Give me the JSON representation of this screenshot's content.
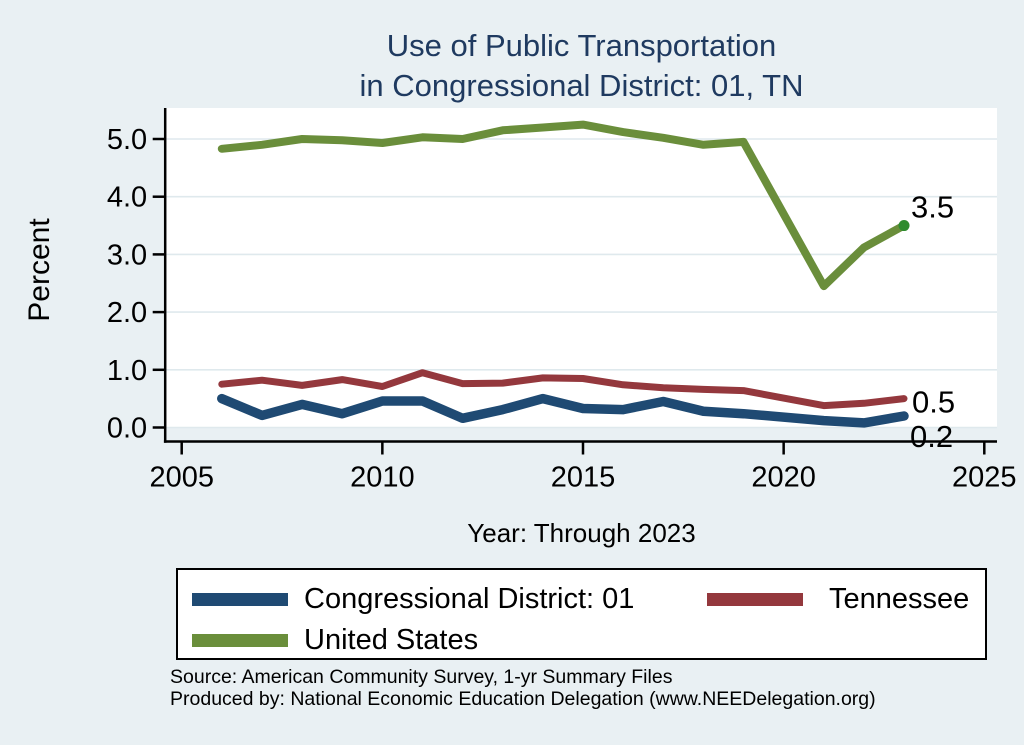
{
  "title": {
    "line1": "Use of Public Transportation",
    "line2": "in Congressional District: 01, TN"
  },
  "footer": {
    "source": "Source: American Community Survey, 1-yr Summary Files",
    "produced_by": "Produced by: National Economic Education Delegation (www.NEEDelegation.org)"
  },
  "colors": {
    "background": "#E9F0F3",
    "plot_background": "#FFFFFF",
    "gridline": "#DFE9ED",
    "axis": "#000000",
    "title_text": "#1F3A60"
  },
  "chart_data": {
    "type": "line",
    "title": "Use of Public Transportation in Congressional District: 01, TN",
    "xlabel": "Year: Through 2023",
    "ylabel": "Percent",
    "grid": true,
    "legend_position": "bottom",
    "xlim": [
      2004.6,
      2025.3
    ],
    "ylim": [
      0,
      5.5
    ],
    "x": [
      2006,
      2007,
      2008,
      2009,
      2010,
      2011,
      2012,
      2013,
      2014,
      2015,
      2016,
      2017,
      2018,
      2019,
      2021,
      2022,
      2023
    ],
    "series": [
      {
        "name": "Congressional District: 01",
        "color": "#1F4A73",
        "end_label": "0.2",
        "values": [
          0.5,
          0.21,
          0.4,
          0.24,
          0.46,
          0.46,
          0.16,
          0.31,
          0.5,
          0.33,
          0.31,
          0.45,
          0.28,
          0.24,
          0.12,
          0.08,
          0.2
        ]
      },
      {
        "name": "Tennessee",
        "color": "#94383D",
        "end_label": "0.5",
        "values": [
          0.75,
          0.82,
          0.73,
          0.83,
          0.71,
          0.95,
          0.76,
          0.77,
          0.86,
          0.85,
          0.74,
          0.69,
          0.66,
          0.64,
          0.38,
          0.42,
          0.5
        ]
      },
      {
        "name": "United States",
        "color": "#6A8E3B",
        "end_label": "3.5",
        "end_dot": true,
        "end_dot_color": "#2E8B2E",
        "values": [
          4.83,
          4.9,
          5.0,
          4.98,
          4.93,
          5.03,
          5.0,
          5.15,
          5.2,
          5.25,
          5.12,
          5.02,
          4.9,
          4.95,
          2.45,
          3.12,
          3.5
        ]
      }
    ],
    "x_ticks": {
      "values": [
        2005,
        2010,
        2015,
        2020,
        2025
      ],
      "labels": [
        "2005",
        "2010",
        "2015",
        "2020",
        "2025"
      ]
    },
    "y_ticks": {
      "values": [
        0,
        1,
        2,
        3,
        4,
        5
      ],
      "labels": [
        "0.0",
        "1.0",
        "2.0",
        "3.0",
        "4.0",
        "5.0"
      ]
    }
  }
}
